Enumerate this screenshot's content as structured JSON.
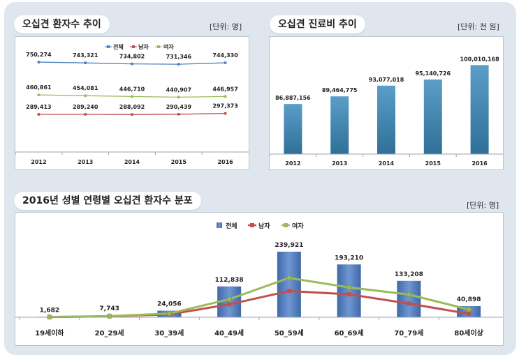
{
  "chart_data": [
    {
      "type": "line",
      "title": "오십견 환자수 추이",
      "unit": "[단위: 명]",
      "categories": [
        "2012",
        "2013",
        "2014",
        "2015",
        "2016"
      ],
      "legend": [
        "전체",
        "남자",
        "여자"
      ],
      "legend_position": "top-right",
      "series": [
        {
          "name": "전체",
          "values": [
            750274,
            743321,
            734802,
            731346,
            744330
          ],
          "labels": [
            "750,274",
            "743,321",
            "734,802",
            "731,346",
            "744,330"
          ],
          "color": "#4f81bd"
        },
        {
          "name": "남자",
          "values": [
            289413,
            289240,
            288092,
            290439,
            297373
          ],
          "labels": [
            "289,413",
            "289,240",
            "288,092",
            "290,439",
            "297,373"
          ],
          "color": "#c0504d"
        },
        {
          "name": "여자",
          "values": [
            460861,
            454081,
            446710,
            440907,
            446957
          ],
          "labels": [
            "460,861",
            "454,081",
            "446,710",
            "440,907",
            "446,957"
          ],
          "color": "#9bbb59"
        }
      ]
    },
    {
      "type": "bar",
      "title": "오십견 진료비 추이",
      "unit": "[단위: 천 원]",
      "categories": [
        "2012",
        "2013",
        "2014",
        "2015",
        "2016"
      ],
      "values": [
        86887156,
        89464775,
        93077018,
        95140726,
        100010168
      ],
      "labels": [
        "86,887,156",
        "89,464,775",
        "93,077,018",
        "95,140,726",
        "100,010,168"
      ],
      "color": "#4a8db3"
    },
    {
      "type": "bar",
      "title": "2016년 성별 연령별 오십견 환자수 분포",
      "unit": "[단위: 명]",
      "categories": [
        "19세이하",
        "20_29세",
        "30_39세",
        "40_49세",
        "50_59세",
        "60_69세",
        "70_79세",
        "80세이상"
      ],
      "legend": [
        "전체",
        "남자",
        "여자"
      ],
      "legend_position": "top",
      "series": [
        {
          "name": "전체",
          "kind": "bar",
          "values": [
            1682,
            7743,
            24056,
            112838,
            239921,
            193210,
            133208,
            40898
          ],
          "labels": [
            "1,682",
            "7,743",
            "24,056",
            "112,838",
            "239,921",
            "193,210",
            "133,208",
            "40,898"
          ],
          "color": "#4f81bd"
        },
        {
          "name": "남자",
          "kind": "line",
          "values": [
            500,
            3600,
            10500,
            47000,
            96000,
            84000,
            50000,
            12500
          ],
          "color": "#c0504d"
        },
        {
          "name": "여자",
          "kind": "line",
          "values": [
            1182,
            4143,
            13556,
            65838,
            143921,
            109210,
            83208,
            28398
          ],
          "color": "#9bbb59"
        }
      ]
    }
  ]
}
